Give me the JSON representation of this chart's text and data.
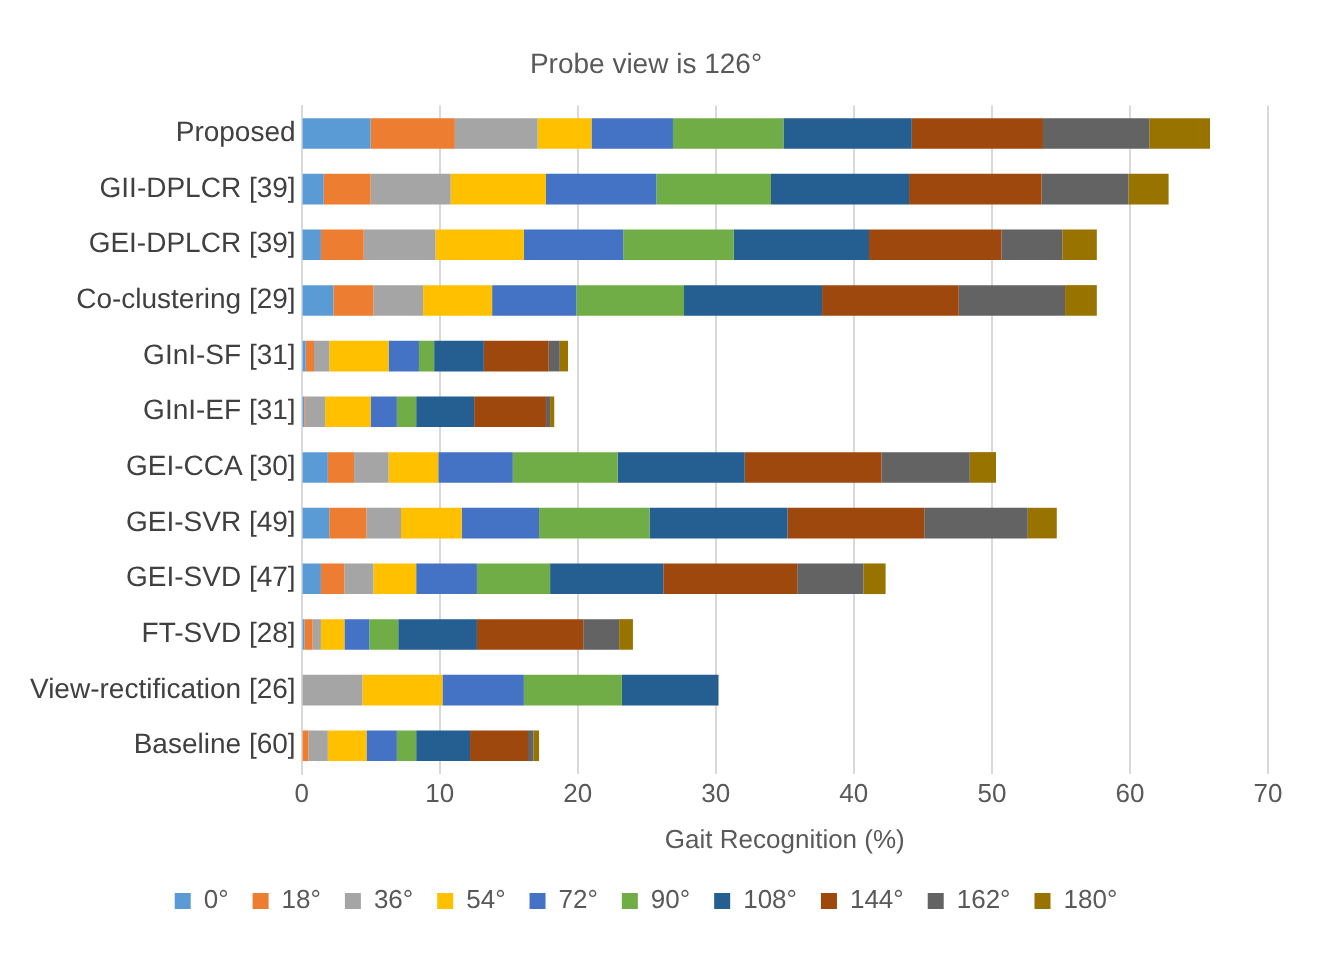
{
  "chart_data": {
    "type": "bar",
    "orientation": "horizontal",
    "stacked": true,
    "title": "Probe view is 126°",
    "xlabel": "Gait Recognition (%)",
    "categories": [
      "Proposed",
      "GII-DPLCR [39]",
      "GEI-DPLCR [39]",
      "Co-clustering [29]",
      "GInI-SF [31]",
      "GInI-EF [31]",
      "GEI-CCA [30]",
      "GEI-SVR [49]",
      "GEI-SVD [47]",
      "FT-SVD [28]",
      "View-rectification [26]",
      "Baseline [60]"
    ],
    "series": [
      {
        "name": "0°",
        "color": "#5b9bd5",
        "values": [
          5.0,
          1.6,
          1.4,
          2.3,
          0.3,
          0.2,
          1.9,
          2.0,
          1.4,
          0.2,
          null,
          null
        ]
      },
      {
        "name": "18°",
        "color": "#ed7d31",
        "values": [
          6.1,
          3.4,
          3.1,
          2.9,
          0.6,
          0.1,
          1.9,
          2.7,
          1.7,
          0.6,
          null,
          0.5
        ]
      },
      {
        "name": "36°",
        "color": "#a5a5a5",
        "values": [
          6.0,
          5.8,
          5.2,
          3.6,
          1.1,
          1.4,
          2.5,
          2.5,
          2.1,
          0.6,
          4.4,
          1.4
        ]
      },
      {
        "name": "54°",
        "color": "#ffc000",
        "values": [
          3.9,
          6.9,
          6.4,
          5.0,
          4.3,
          3.3,
          3.6,
          4.4,
          3.1,
          1.7,
          5.8,
          2.8
        ]
      },
      {
        "name": "72°",
        "color": "#4472c4",
        "values": [
          5.9,
          8.0,
          7.2,
          6.1,
          2.2,
          1.9,
          5.4,
          5.6,
          4.4,
          1.8,
          5.9,
          2.2
        ]
      },
      {
        "name": "90°",
        "color": "#70ad47",
        "values": [
          8.0,
          8.3,
          8.0,
          7.8,
          1.1,
          1.4,
          7.6,
          8.0,
          5.3,
          2.1,
          7.1,
          1.4
        ]
      },
      {
        "name": "108°",
        "color": "#255e91",
        "values": [
          9.3,
          10.0,
          9.8,
          10.0,
          3.6,
          4.2,
          9.2,
          10.0,
          8.2,
          5.7,
          7.0,
          3.9
        ]
      },
      {
        "name": "144°",
        "color": "#9e480e",
        "values": [
          9.5,
          9.6,
          9.6,
          9.9,
          4.7,
          5.2,
          9.9,
          9.9,
          9.7,
          7.7,
          null,
          4.2
        ]
      },
      {
        "name": "162°",
        "color": "#636363",
        "values": [
          7.7,
          6.3,
          4.4,
          7.7,
          0.8,
          0.3,
          6.4,
          7.5,
          4.8,
          2.6,
          null,
          0.4
        ]
      },
      {
        "name": "180°",
        "color": "#997300",
        "values": [
          4.4,
          2.9,
          2.5,
          2.3,
          0.6,
          0.3,
          1.9,
          2.1,
          1.6,
          1.0,
          null,
          0.4
        ]
      }
    ],
    "xlim": [
      0,
      70
    ],
    "xticks": [
      0,
      10,
      20,
      30,
      40,
      50,
      60,
      70
    ],
    "grid": "x",
    "legend": "bottom"
  }
}
